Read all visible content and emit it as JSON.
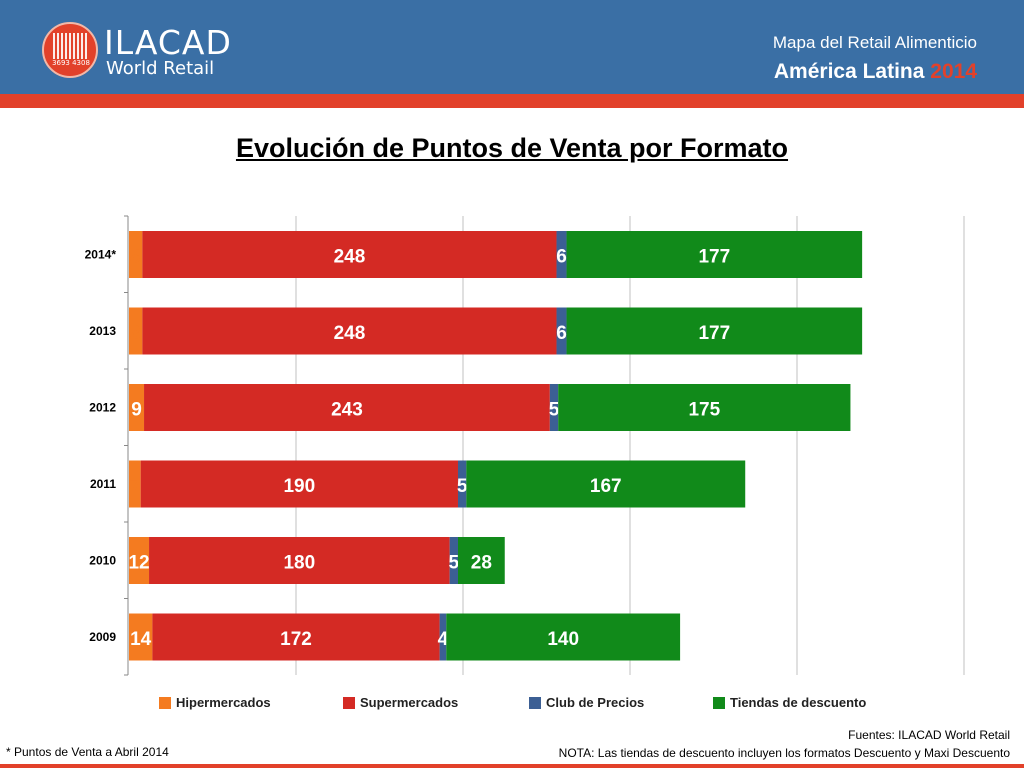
{
  "header": {
    "brand": "ILACAD",
    "brand_sub": "World Retail",
    "logo_number": "3693  4308",
    "line1": "Mapa del Retail Alimenticio",
    "line2": "América Latina",
    "line2_year": "2014",
    "colors": {
      "bar": "#3a6fa5",
      "stripe": "#e2412a"
    }
  },
  "title": "Evolución de Puntos de Venta por Formato",
  "chart_data": {
    "type": "bar",
    "orientation": "horizontal",
    "stacked": true,
    "categories": [
      "2014*",
      "2013",
      "2012",
      "2011",
      "2010",
      "2009"
    ],
    "series": [
      {
        "name": "Hipermercados",
        "color": "#f47b20",
        "values": [
          8,
          8,
          9,
          7,
          12,
          14
        ],
        "label_color": "#f47b20"
      },
      {
        "name": "Supermercados",
        "color": "#d42a24",
        "values": [
          248,
          248,
          243,
          190,
          180,
          172
        ],
        "label_color": "#ffffff"
      },
      {
        "name": "Club de Precios",
        "color": "#3c5f94",
        "values": [
          6,
          6,
          5,
          5,
          5,
          4
        ],
        "label_color": "#ffffff"
      },
      {
        "name": "Tiendas de descuento",
        "color": "#118a1a",
        "values": [
          177,
          177,
          175,
          167,
          28,
          140
        ],
        "label_color": "#ffffff"
      }
    ],
    "xlim": [
      0,
      500
    ],
    "grid": true,
    "legend_position": "bottom"
  },
  "footer": {
    "sources": "Fuentes: ILACAD World Retail",
    "note": "NOTA: Las tiendas de descuento incluyen los formatos Descuento y Maxi Descuento",
    "footnote": "* Puntos de Venta a Abril 2014"
  }
}
